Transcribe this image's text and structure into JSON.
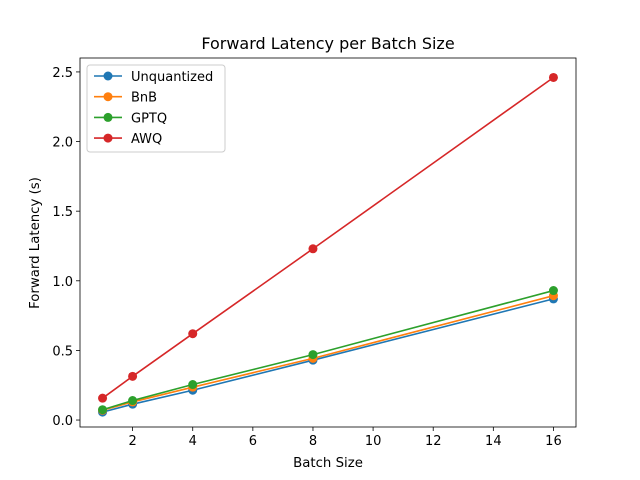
{
  "chart_data": {
    "type": "line",
    "title": "Forward Latency per Batch Size",
    "xlabel": "Batch Size",
    "ylabel": "Forward Latency (s)",
    "x": [
      1,
      2,
      4,
      8,
      16
    ],
    "xlim": [
      0.25,
      16.75
    ],
    "ylim": [
      -0.05,
      2.6
    ],
    "xticks": [
      2,
      4,
      6,
      8,
      10,
      12,
      14,
      16
    ],
    "yticks": [
      0.0,
      0.5,
      1.0,
      1.5,
      2.0,
      2.5
    ],
    "ytick_labels": [
      "0.0",
      "0.5",
      "1.0",
      "1.5",
      "2.0",
      "2.5"
    ],
    "grid": false,
    "legend_position": "upper-left",
    "series": [
      {
        "name": "Unquantized",
        "color": "#1f77b4",
        "values": [
          0.057,
          0.114,
          0.214,
          0.43,
          0.87
        ]
      },
      {
        "name": "BnB",
        "color": "#ff7f0e",
        "values": [
          0.07,
          0.13,
          0.236,
          0.443,
          0.893
        ]
      },
      {
        "name": "GPTQ",
        "color": "#2ca02c",
        "values": [
          0.074,
          0.14,
          0.255,
          0.47,
          0.93
        ]
      },
      {
        "name": "AWQ",
        "color": "#d62728",
        "values": [
          0.157,
          0.314,
          0.62,
          1.23,
          2.46
        ]
      }
    ]
  }
}
